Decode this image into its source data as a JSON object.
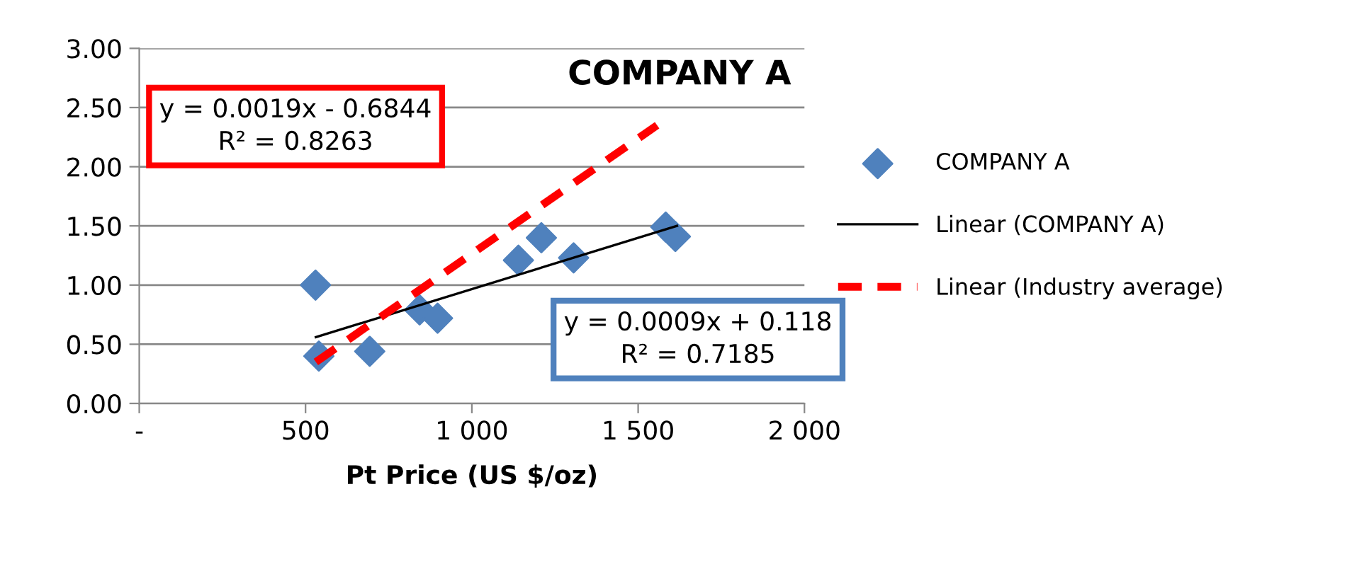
{
  "chart_data": {
    "type": "scatter",
    "title": "COMPANY A",
    "xlabel": "Pt Price (US $/oz)",
    "xlim": [
      0,
      2000
    ],
    "xticks": [
      {
        "value": 0,
        "label": "-"
      },
      {
        "value": 500,
        "label": "500"
      },
      {
        "value": 1000,
        "label": "1 000"
      },
      {
        "value": 1500,
        "label": "1 500"
      },
      {
        "value": 2000,
        "label": "2 000"
      }
    ],
    "ylim": [
      0,
      3
    ],
    "yticks": [
      {
        "value": 0,
        "label": "0.00"
      },
      {
        "value": 0.5,
        "label": "0.50"
      },
      {
        "value": 1,
        "label": "1.00"
      },
      {
        "value": 1.5,
        "label": "1.50"
      },
      {
        "value": 2,
        "label": "2.00"
      },
      {
        "value": 2.5,
        "label": "2.50"
      },
      {
        "value": 3,
        "label": "3.00"
      }
    ],
    "grid": "y",
    "legend": "right",
    "marker": "diamond",
    "series": [
      {
        "name": "COMPANY A",
        "color": "#4f81bd",
        "x": [
          530,
          540,
          693,
          843,
          897,
          1140,
          1209,
          1306,
          1583,
          1612
        ],
        "values": [
          1.0,
          0.4,
          0.44,
          0.79,
          0.72,
          1.21,
          1.4,
          1.23,
          1.49,
          1.41
        ]
      },
      {
        "name": "Linear (COMPANY A)",
        "type": "line",
        "color": "#000000",
        "line_style": "solid",
        "marker": "none",
        "x": [
          531,
          1617
        ],
        "values": [
          0.56,
          1.5
        ]
      },
      {
        "name": "Linear (Industry average)",
        "type": "line",
        "color": "#ff0000",
        "line_style": "dashed",
        "marker": "none",
        "x": [
          531,
          1557
        ],
        "values": [
          0.35,
          2.35
        ]
      }
    ],
    "annotations": [
      "y = 0.0019x - 0.6844\nR² = 0.8263",
      "y = 0.0009x + 0.118\nR² = 0.7185"
    ]
  }
}
